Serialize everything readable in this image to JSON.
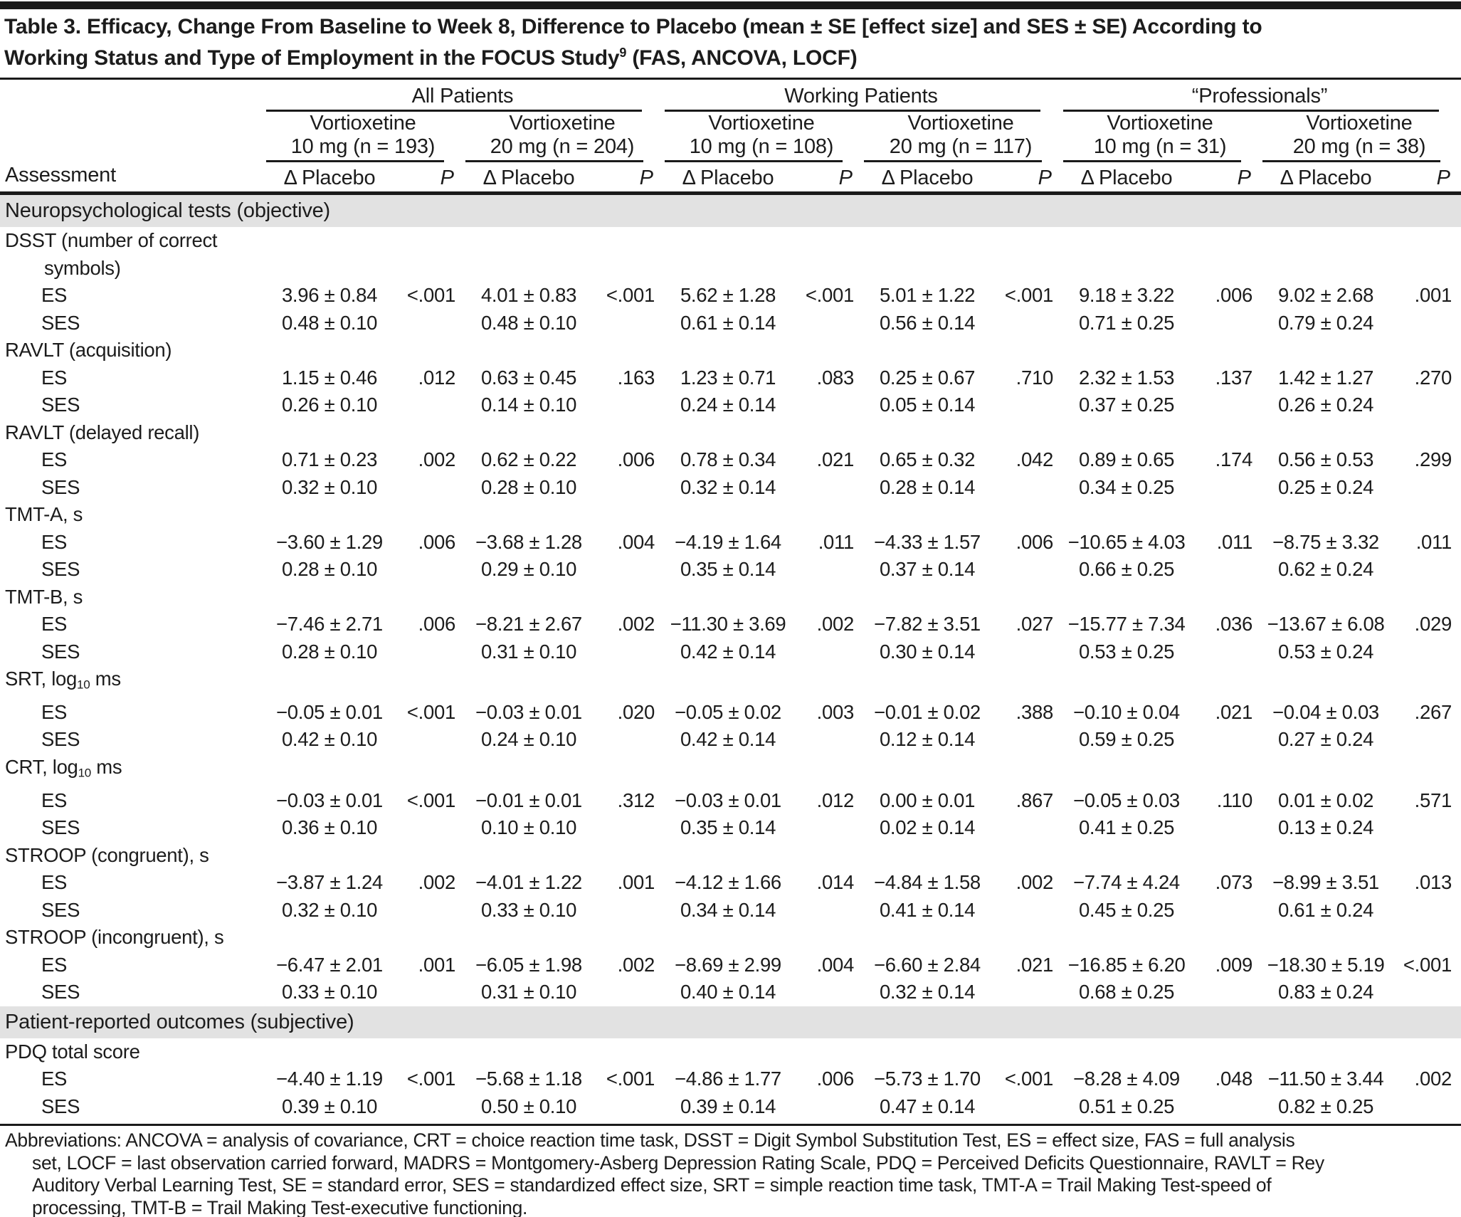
{
  "colors": {
    "rule": "#1a1a1a",
    "section_band": "#e2e2e2",
    "text": "#1c1c1c"
  },
  "title": {
    "line1": "Table 3. Efficacy, Change From Baseline to Week 8, Difference to Placebo (mean ± SE [effect size] and SES ± SE) According to",
    "line2_pre": "Working Status and Type of Employment in the FOCUS Study",
    "line2_sup": "9",
    "line2_post": " (FAS, ANCOVA, LOCF)"
  },
  "header": {
    "assessment_label": "Assessment",
    "delta_label": "Δ Placebo",
    "p_label": "P",
    "groups": [
      {
        "name": "All Patients",
        "doses": [
          {
            "drug": "Vortioxetine",
            "detail": "10 mg (n = 193)"
          },
          {
            "drug": "Vortioxetine",
            "detail": "20 mg (n = 204)"
          }
        ]
      },
      {
        "name": "Working Patients",
        "doses": [
          {
            "drug": "Vortioxetine",
            "detail": "10 mg (n = 108)"
          },
          {
            "drug": "Vortioxetine",
            "detail": "20 mg (n = 117)"
          }
        ]
      },
      {
        "name": "“Professionals”",
        "doses": [
          {
            "drug": "Vortioxetine",
            "detail": "10 mg (n = 31)"
          },
          {
            "drug": "Vortioxetine",
            "detail": "20 mg (n = 38)"
          }
        ]
      }
    ]
  },
  "row_labels": {
    "es": "ES",
    "ses": "SES"
  },
  "sections": [
    {
      "label": "Neuropsychological tests (objective)",
      "assessments": [
        {
          "name": [
            {
              "t": "DSST (number of correct symbols)"
            }
          ],
          "es_values": [
            "3.96 ± 0.84",
            "4.01 ± 0.83",
            "5.62 ± 1.28",
            "5.01 ± 1.22",
            "9.18 ± 3.22",
            "9.02 ± 2.68"
          ],
          "es_p": [
            "<.001",
            "<.001",
            "<.001",
            "<.001",
            ".006",
            ".001"
          ],
          "ses_values": [
            "0.48 ± 0.10",
            "0.48 ± 0.10",
            "0.61 ± 0.14",
            "0.56 ± 0.14",
            "0.71 ± 0.25",
            "0.79 ± 0.24"
          ]
        },
        {
          "name": [
            {
              "t": "RAVLT (acquisition)"
            }
          ],
          "es_values": [
            "1.15 ± 0.46",
            "0.63 ± 0.45",
            "1.23 ± 0.71",
            "0.25 ± 0.67",
            "2.32 ± 1.53",
            "1.42 ± 1.27"
          ],
          "es_p": [
            ".012",
            ".163",
            ".083",
            ".710",
            ".137",
            ".270"
          ],
          "ses_values": [
            "0.26 ± 0.10",
            "0.14 ± 0.10",
            "0.24 ± 0.14",
            "0.05 ± 0.14",
            "0.37 ± 0.25",
            "0.26 ± 0.24"
          ]
        },
        {
          "name": [
            {
              "t": "RAVLT (delayed recall)"
            }
          ],
          "es_values": [
            "0.71 ± 0.23",
            "0.62 ± 0.22",
            "0.78 ± 0.34",
            "0.65 ± 0.32",
            "0.89 ± 0.65",
            "0.56 ± 0.53"
          ],
          "es_p": [
            ".002",
            ".006",
            ".021",
            ".042",
            ".174",
            ".299"
          ],
          "ses_values": [
            "0.32 ± 0.10",
            "0.28 ± 0.10",
            "0.32 ± 0.14",
            "0.28 ± 0.14",
            "0.34 ± 0.25",
            "0.25 ± 0.24"
          ]
        },
        {
          "name": [
            {
              "t": "TMT-A, s"
            }
          ],
          "es_values": [
            "−3.60 ± 1.29",
            "−3.68 ± 1.28",
            "−4.19 ± 1.64",
            "−4.33 ± 1.57",
            "−10.65 ± 4.03",
            "−8.75 ± 3.32"
          ],
          "es_p": [
            ".006",
            ".004",
            ".011",
            ".006",
            ".011",
            ".011"
          ],
          "ses_values": [
            "0.28 ± 0.10",
            "0.29 ± 0.10",
            "0.35 ± 0.14",
            "0.37 ± 0.14",
            "0.66 ± 0.25",
            "0.62 ± 0.24"
          ]
        },
        {
          "name": [
            {
              "t": "TMT-B, s"
            }
          ],
          "es_values": [
            "−7.46 ± 2.71",
            "−8.21 ± 2.67",
            "−11.30 ± 3.69",
            "−7.82 ± 3.51",
            "−15.77 ± 7.34",
            "−13.67 ± 6.08"
          ],
          "es_p": [
            ".006",
            ".002",
            ".002",
            ".027",
            ".036",
            ".029"
          ],
          "ses_values": [
            "0.28 ± 0.10",
            "0.31 ± 0.10",
            "0.42 ± 0.14",
            "0.30 ± 0.14",
            "0.53 ± 0.25",
            "0.53 ± 0.24"
          ]
        },
        {
          "name": [
            {
              "t": "SRT, log"
            },
            {
              "t": "10",
              "sub": true
            },
            {
              "t": " ms"
            }
          ],
          "es_values": [
            "−0.05 ± 0.01",
            "−0.03 ± 0.01",
            "−0.05 ± 0.02",
            "−0.01 ± 0.02",
            "−0.10 ± 0.04",
            "−0.04 ± 0.03"
          ],
          "es_p": [
            "<.001",
            ".020",
            ".003",
            ".388",
            ".021",
            ".267"
          ],
          "ses_values": [
            "0.42 ± 0.10",
            "0.24 ± 0.10",
            "0.42 ± 0.14",
            "0.12 ± 0.14",
            "0.59 ± 0.25",
            "0.27 ± 0.24"
          ]
        },
        {
          "name": [
            {
              "t": "CRT, log"
            },
            {
              "t": "10",
              "sub": true
            },
            {
              "t": " ms"
            }
          ],
          "es_values": [
            "−0.03 ± 0.01",
            "−0.01 ± 0.01",
            "−0.03 ± 0.01",
            "0.00 ± 0.01",
            "−0.05 ± 0.03",
            "0.01 ± 0.02"
          ],
          "es_p": [
            "<.001",
            ".312",
            ".012",
            ".867",
            ".110",
            ".571"
          ],
          "ses_values": [
            "0.36 ± 0.10",
            "0.10 ± 0.10",
            "0.35 ± 0.14",
            "0.02 ± 0.14",
            "0.41 ± 0.25",
            "0.13 ± 0.24"
          ]
        },
        {
          "name": [
            {
              "t": "STROOP (congruent), s"
            }
          ],
          "es_values": [
            "−3.87 ± 1.24",
            "−4.01 ± 1.22",
            "−4.12 ± 1.66",
            "−4.84 ± 1.58",
            "−7.74 ± 4.24",
            "−8.99 ± 3.51"
          ],
          "es_p": [
            ".002",
            ".001",
            ".014",
            ".002",
            ".073",
            ".013"
          ],
          "ses_values": [
            "0.32 ± 0.10",
            "0.33 ± 0.10",
            "0.34 ± 0.14",
            "0.41 ± 0.14",
            "0.45 ± 0.25",
            "0.61 ± 0.24"
          ]
        },
        {
          "name": [
            {
              "t": "STROOP (incongruent), s"
            }
          ],
          "es_values": [
            "−6.47 ± 2.01",
            "−6.05 ± 1.98",
            "−8.69 ± 2.99",
            "−6.60 ± 2.84",
            "−16.85 ± 6.20",
            "−18.30 ± 5.19"
          ],
          "es_p": [
            ".001",
            ".002",
            ".004",
            ".021",
            ".009",
            "<.001"
          ],
          "ses_values": [
            "0.33 ± 0.10",
            "0.31 ± 0.10",
            "0.40 ± 0.14",
            "0.32 ± 0.14",
            "0.68 ± 0.25",
            "0.83 ± 0.24"
          ]
        }
      ]
    },
    {
      "label": "Patient-reported outcomes (subjective)",
      "assessments": [
        {
          "name": [
            {
              "t": "PDQ total score"
            }
          ],
          "es_values": [
            "−4.40 ± 1.19",
            "−5.68 ± 1.18",
            "−4.86 ± 1.77",
            "−5.73 ± 1.70",
            "−8.28 ± 4.09",
            "−11.50 ± 3.44"
          ],
          "es_p": [
            "<.001",
            "<.001",
            ".006",
            "<.001",
            ".048",
            ".002"
          ],
          "ses_values": [
            "0.39 ± 0.10",
            "0.50 ± 0.10",
            "0.39 ± 0.14",
            "0.47 ± 0.14",
            "0.51 ± 0.25",
            "0.82 ± 0.25"
          ]
        }
      ]
    }
  ],
  "footer_lines": [
    "Abbreviations: ANCOVA = analysis of covariance, CRT = choice reaction time task, DSST = Digit Symbol Substitution Test, ES = effect size, FAS = full analysis",
    "set, LOCF = last observation carried forward, MADRS = Montgomery-Asberg Depression Rating Scale, PDQ = Perceived Deficits Questionnaire, RAVLT = Rey",
    "Auditory Verbal Learning Test, SE = standard error, SES = standardized effect size, SRT = simple reaction time task, TMT-A = Trail Making Test-speed of",
    "processing, TMT-B = Trail Making Test-executive functioning."
  ]
}
